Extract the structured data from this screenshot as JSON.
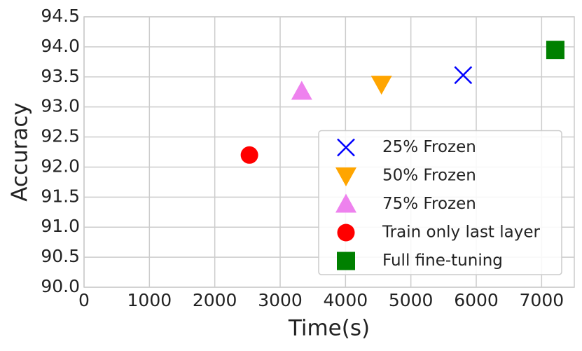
{
  "chart_data": {
    "type": "scatter",
    "x_label": "Time(s)",
    "y_label": "Accuracy",
    "xlim": [
      0,
      7500
    ],
    "ylim": [
      90.0,
      94.5
    ],
    "xticks": [
      0,
      1000,
      2000,
      3000,
      4000,
      5000,
      6000,
      7000
    ],
    "yticks": [
      {
        "value": 90.0,
        "label": "90.0"
      },
      {
        "value": 90.5,
        "label": "90.5"
      },
      {
        "value": 91.0,
        "label": "91.0"
      },
      {
        "value": 91.5,
        "label": "91.5"
      },
      {
        "value": 92.0,
        "label": "92.0"
      },
      {
        "value": 92.5,
        "label": "92.5"
      },
      {
        "value": 93.0,
        "label": "93.0"
      },
      {
        "value": 93.5,
        "label": "93.5"
      },
      {
        "value": 94.0,
        "label": "94.0"
      },
      {
        "value": 94.5,
        "label": "94.5"
      }
    ],
    "grid": true,
    "legend": "lower right",
    "series": [
      {
        "name": "25% Frozen",
        "color": "#0000ff",
        "marker": "x",
        "x": [
          5800
        ],
        "values": [
          93.53
        ]
      },
      {
        "name": "50% Frozen",
        "color": "#ffa500",
        "marker": "v",
        "x": [
          4550
        ],
        "values": [
          93.38
        ]
      },
      {
        "name": "75% Frozen",
        "color": "#ee82ee",
        "marker": "^",
        "x": [
          3330
        ],
        "values": [
          93.26
        ]
      },
      {
        "name": "Train only last layer",
        "color": "#ff0000",
        "marker": "o",
        "x": [
          2530
        ],
        "values": [
          92.2
        ]
      },
      {
        "name": "Full fine-tuning",
        "color": "#008000",
        "marker": "s",
        "x": [
          7210
        ],
        "values": [
          93.95
        ]
      }
    ]
  }
}
